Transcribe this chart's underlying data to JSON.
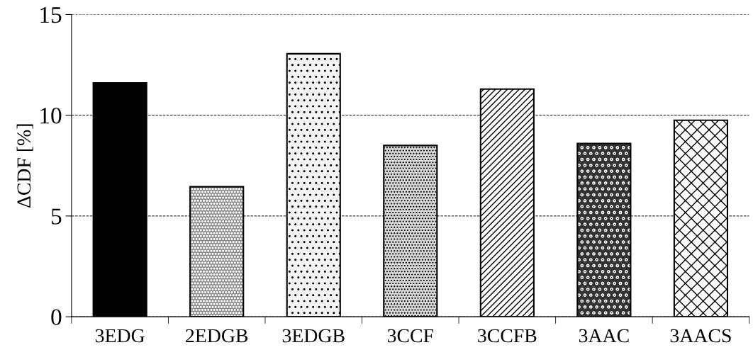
{
  "chart_data": {
    "type": "bar",
    "ylabel": "ΔCDF [%]",
    "categories": [
      "3EDG",
      "2EDGB",
      "3EDGB",
      "3CCF",
      "3CCFB",
      "3AAC",
      "3AACS"
    ],
    "values": [
      11.6,
      6.45,
      13.05,
      8.5,
      11.3,
      8.6,
      9.75
    ],
    "colors": [
      "#000000",
      "#8c8c8c",
      "#f4f4f4",
      "#d9d9d9",
      "#ffffff",
      "#333333",
      "#ffffff"
    ],
    "ylim": [
      0,
      15
    ],
    "yticks": [
      0,
      5,
      10,
      15
    ],
    "grid": "y"
  }
}
